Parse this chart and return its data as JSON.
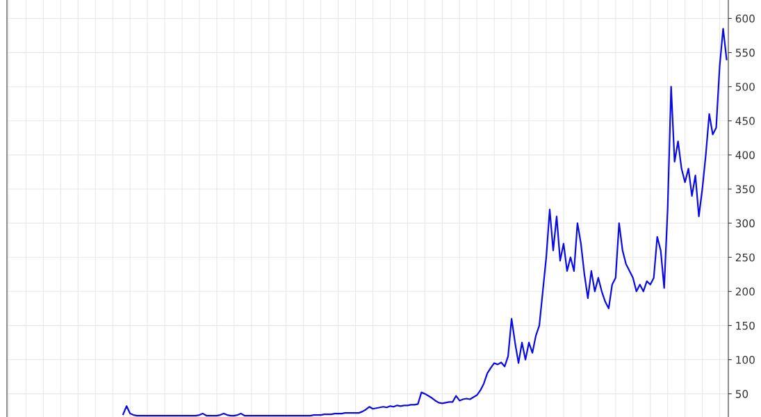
{
  "chart_data": {
    "type": "line",
    "categories": [
      null,
      null,
      null,
      null,
      null,
      null,
      null,
      null,
      null,
      null,
      null,
      null,
      null,
      null,
      null,
      null,
      null,
      null,
      null,
      null,
      null,
      null,
      null,
      null,
      null,
      null,
      null,
      null,
      null,
      null,
      null,
      null,
      null,
      null,
      null,
      null,
      null,
      null,
      null,
      null,
      null,
      null,
      null,
      null,
      null,
      null,
      null,
      null,
      null,
      null,
      null,
      null,
      null,
      null,
      null,
      null,
      null,
      null,
      null,
      null,
      null,
      null,
      null,
      null,
      null,
      null,
      null,
      null,
      null,
      null,
      null,
      null,
      null,
      null,
      null,
      null,
      null,
      null,
      null,
      null,
      null,
      null,
      null,
      null,
      null,
      null,
      null,
      null,
      null,
      null,
      null,
      null,
      null,
      null,
      null,
      null,
      null,
      null,
      null,
      null,
      null,
      null,
      null,
      null,
      null,
      null,
      null,
      null,
      null,
      null,
      null,
      null,
      null,
      null,
      null,
      null,
      null,
      null,
      null,
      null,
      null,
      null,
      null,
      null,
      null,
      null,
      null,
      null,
      null,
      null,
      null,
      null,
      null,
      null,
      null,
      null,
      null,
      null,
      null,
      null,
      null,
      null,
      null,
      null,
      null,
      null,
      null,
      null,
      null,
      null,
      null,
      null,
      null,
      null,
      null,
      null,
      null,
      null,
      null,
      null,
      null,
      null,
      null,
      null,
      null,
      null,
      null,
      null,
      null,
      null,
      null,
      null,
      null,
      null,
      null,
      null,
      null,
      null,
      null,
      null,
      null,
      null,
      null,
      null,
      null,
      null,
      null,
      null,
      null,
      null,
      null,
      null,
      null,
      null,
      null,
      null,
      null,
      null,
      null,
      null,
      null,
      null,
      null,
      null,
      null,
      null,
      null,
      null
    ],
    "series": [
      {
        "color": "#0a0ae6",
        "values": [
          null,
          null,
          null,
          null,
          null,
          null,
          null,
          null,
          null,
          null,
          null,
          null,
          null,
          null,
          null,
          null,
          null,
          null,
          null,
          null,
          null,
          null,
          null,
          null,
          null,
          null,
          null,
          null,
          null,
          null,
          null,
          null,
          null,
          20,
          32,
          21,
          19,
          18,
          18,
          18,
          18,
          18,
          18,
          18,
          18,
          18,
          18,
          18,
          18,
          18,
          18,
          18,
          18,
          18,
          18,
          19,
          21,
          18,
          18,
          18,
          18,
          19,
          21,
          19,
          18,
          18,
          19,
          21,
          18,
          18,
          18,
          18,
          18,
          18,
          18,
          18,
          18,
          18,
          18,
          18,
          18,
          18,
          18,
          18,
          18,
          18,
          18,
          18,
          19,
          19,
          19,
          20,
          20,
          20,
          21,
          21,
          21,
          22,
          22,
          22,
          22,
          22,
          24,
          27,
          31,
          28,
          29,
          30,
          31,
          30,
          32,
          31,
          33,
          32,
          33,
          33,
          34,
          34,
          35,
          52,
          50,
          47,
          44,
          40,
          37,
          36,
          37,
          38,
          38,
          47,
          40,
          42,
          43,
          42,
          45,
          48,
          55,
          65,
          80,
          88,
          95,
          93,
          96,
          90,
          105,
          160,
          125,
          95,
          125,
          100,
          125,
          110,
          135,
          150,
          200,
          250,
          320,
          260,
          310,
          245,
          270,
          230,
          250,
          230,
          300,
          270,
          225,
          190,
          230,
          200,
          220,
          200,
          185,
          175,
          210,
          220,
          300,
          260,
          240,
          230,
          220,
          200,
          210,
          200,
          215,
          210,
          220,
          280,
          260,
          205,
          320,
          500,
          390,
          420,
          380,
          360,
          380,
          340,
          370,
          310,
          350,
          400,
          460,
          430,
          440,
          530,
          585,
          540
        ]
      }
    ],
    "ylim": [
      16,
      627
    ],
    "yticks": [
      50,
      100,
      150,
      200,
      250,
      300,
      350,
      400,
      450,
      500,
      550,
      600
    ],
    "grid": true,
    "tick_labels": "y",
    "marker": "none",
    "line_style": "solid"
  }
}
